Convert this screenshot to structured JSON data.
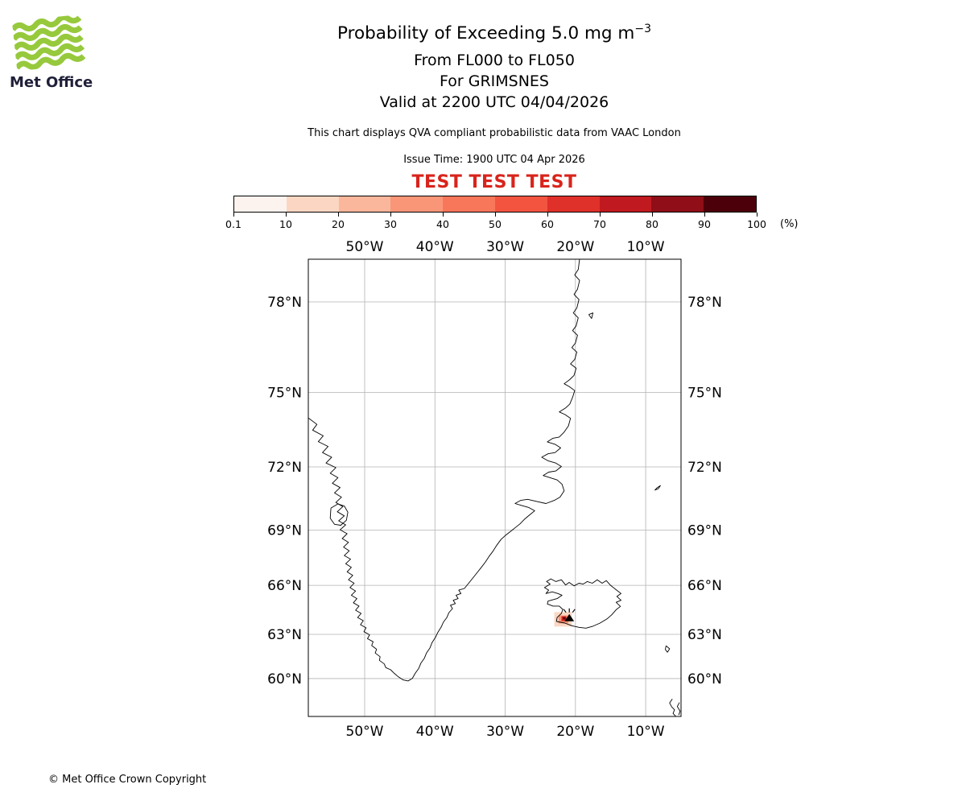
{
  "branding": {
    "logo_text": "Met Office",
    "copyright": "© Met Office Crown Copyright"
  },
  "header": {
    "title_main": "Probability of Exceeding 5.0 mg m",
    "title_exponent": "−3",
    "flight_levels": "From FL000 to FL050",
    "volcano_line": "For GRIMSNES",
    "valid_line": "Valid at 2200 UTC 04/04/2026",
    "qva_note": "This chart displays QVA compliant probabilistic data from VAAC London",
    "issue_line": "Issue Time: 1900 UTC 04 Apr 2026",
    "test_banner": "TEST TEST TEST",
    "test_banner_color": "#d8241c"
  },
  "colorbar": {
    "unit": "(%)",
    "ticks": [
      "0.1",
      "10",
      "20",
      "30",
      "40",
      "50",
      "60",
      "70",
      "80",
      "90",
      "100"
    ],
    "colors": [
      "#fdf3ee",
      "#fbd7c3",
      "#fab79c",
      "#fa9678",
      "#f8765a",
      "#f25440",
      "#e0302a",
      "#c01a20",
      "#8f0e17",
      "#4c0009"
    ]
  },
  "map": {
    "lon_ticks": [
      {
        "label": "50°W",
        "deg": -50
      },
      {
        "label": "40°W",
        "deg": -40
      },
      {
        "label": "30°W",
        "deg": -30
      },
      {
        "label": "20°W",
        "deg": -20
      },
      {
        "label": "10°W",
        "deg": -10
      }
    ],
    "lat_ticks": [
      {
        "label": "78°N",
        "deg": 78
      },
      {
        "label": "75°N",
        "deg": 75
      },
      {
        "label": "72°N",
        "deg": 72
      },
      {
        "label": "69°N",
        "deg": 69
      },
      {
        "label": "66°N",
        "deg": 66
      },
      {
        "label": "63°N",
        "deg": 63
      },
      {
        "label": "60°N",
        "deg": 60
      }
    ],
    "volcano": {
      "name": "GRIMSNES",
      "lon": -20.87,
      "lat": 64.03
    }
  },
  "chart_data": {
    "type": "map",
    "projection": "mercator",
    "title": "Probability of Exceeding 5.0 mg m−3",
    "extent": {
      "lon_min": -58.0,
      "lon_max": -4.9,
      "lat_min": 57.2,
      "lat_max": 79.3
    },
    "colorbar_levels_percent": [
      0.1,
      10,
      20,
      30,
      40,
      50,
      60,
      70,
      80,
      90,
      100
    ],
    "probability_cells": [
      {
        "level_percent": 10,
        "color": "#fbd7c3",
        "lon_min": -23.0,
        "lon_max": -20.5,
        "lat_min": 63.5,
        "lat_max": 64.4
      },
      {
        "level_percent": 40,
        "color": "#fa9678",
        "lon_min": -22.4,
        "lon_max": -21.0,
        "lat_min": 63.7,
        "lat_max": 64.2
      },
      {
        "level_percent": 70,
        "color": "#d92724",
        "lon_min": -22.0,
        "lon_max": -21.3,
        "lat_min": 63.85,
        "lat_max": 64.15
      },
      {
        "level_percent": 95,
        "color": "#67000d",
        "lon_min": -21.8,
        "lon_max": -21.4,
        "lat_min": 63.95,
        "lat_max": 64.1
      }
    ]
  }
}
